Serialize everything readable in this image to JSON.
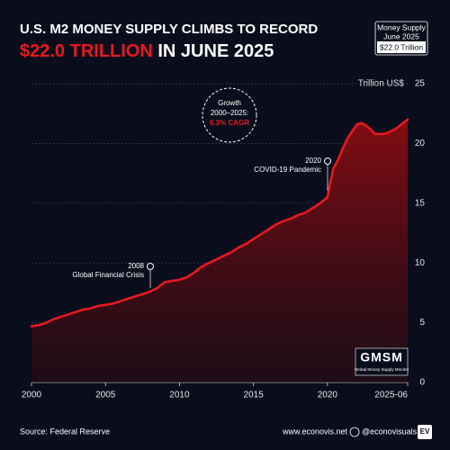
{
  "chart_data": {
    "type": "area",
    "title": "U.S. M2 MONEY SUPPLY CLIMBS TO RECORD",
    "title_highlight": "$22.0 TRILLION",
    "title_rest": "IN JUNE 2025",
    "badge": [
      "Money Supply",
      "June 2025",
      "$22.0 Trillion"
    ],
    "y_axis_label": "Trillion US$",
    "color": "#e8191f",
    "x": [
      2000,
      2000.5,
      2001,
      2001.5,
      2002,
      2002.5,
      2003,
      2003.5,
      2004,
      2004.5,
      2005,
      2005.5,
      2006,
      2006.5,
      2007,
      2007.5,
      2008,
      2008.5,
      2009,
      2009.5,
      2010,
      2010.5,
      2011,
      2011.5,
      2012,
      2012.5,
      2013,
      2013.5,
      2014,
      2014.5,
      2015,
      2015.5,
      2016,
      2016.5,
      2017,
      2017.5,
      2018,
      2018.5,
      2019,
      2019.5,
      2020,
      2020.2,
      2020.4,
      2020.7,
      2021,
      2021.3,
      2021.6,
      2022,
      2022.3,
      2022.6,
      2022.9,
      2023.2,
      2023.5,
      2023.8,
      2024.1,
      2024.4,
      2024.7,
      2025,
      2025.42
    ],
    "values": [
      4.7,
      4.8,
      5.0,
      5.3,
      5.5,
      5.7,
      5.9,
      6.1,
      6.2,
      6.4,
      6.5,
      6.6,
      6.8,
      7.0,
      7.2,
      7.4,
      7.6,
      7.9,
      8.4,
      8.5,
      8.6,
      8.8,
      9.2,
      9.7,
      10.0,
      10.3,
      10.6,
      10.9,
      11.3,
      11.6,
      12.0,
      12.4,
      12.8,
      13.2,
      13.5,
      13.7,
      14.0,
      14.2,
      14.6,
      15.0,
      15.5,
      16.8,
      17.9,
      18.6,
      19.5,
      20.3,
      20.9,
      21.6,
      21.7,
      21.5,
      21.2,
      20.8,
      20.8,
      20.8,
      20.9,
      21.1,
      21.3,
      21.6,
      22.0
    ],
    "xlim": [
      2000,
      2025.42
    ],
    "xticks": [
      2000,
      2005,
      2010,
      2015,
      2020,
      {
        "value": 2025.42,
        "label": "2025-06"
      }
    ],
    "ylim": [
      0,
      25
    ],
    "yticks": [
      0,
      5,
      10,
      15,
      20,
      25
    ],
    "grid": true,
    "annotations": {
      "growth": [
        "Growth",
        "2000–2025:",
        "6.3% CAGR"
      ],
      "covid": [
        "2020",
        "COVID-19 Pandemic"
      ],
      "gfc": [
        "2008",
        "Global Financial Crisis"
      ]
    },
    "watermark": "GMSM",
    "watermark_sub": "Global Money Supply Monitor",
    "footer": {
      "source": "Source: Federal Reserve",
      "website": "www.econovis.net",
      "handle": "@econovisuals",
      "logo": "EV"
    }
  }
}
